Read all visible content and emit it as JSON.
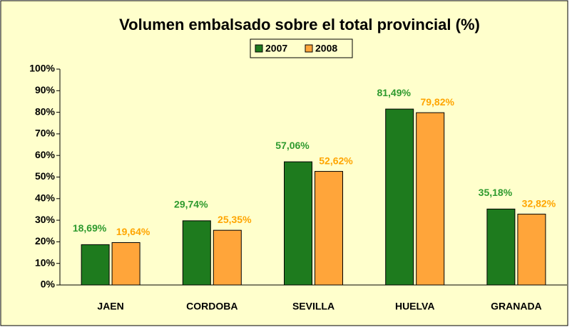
{
  "chart_data": {
    "type": "bar",
    "title": "Volumen embalsado sobre el total provincial (%)",
    "categories": [
      "JAEN",
      "CORDOBA",
      "SEVILLA",
      "HUELVA",
      "GRANADA"
    ],
    "series": [
      {
        "name": "2007",
        "color": "#1e7b1e",
        "label_color": "#2e9a2e",
        "values": [
          18.69,
          29.74,
          57.06,
          81.49,
          35.18
        ],
        "value_labels": [
          "18,69%",
          "29,74%",
          "57,06%",
          "81,49%",
          "35,18%"
        ]
      },
      {
        "name": "2008",
        "color": "#ffa53a",
        "label_color": "#ffa500",
        "values": [
          19.64,
          25.35,
          52.62,
          79.82,
          32.82
        ],
        "value_labels": [
          "19,64%",
          "25,35%",
          "52,62%",
          "79,82%",
          "32,82%"
        ]
      }
    ],
    "ylim": [
      0,
      100
    ],
    "yticks": [
      {
        "value": 0,
        "label": "0%"
      },
      {
        "value": 10,
        "label": "10%"
      },
      {
        "value": 20,
        "label": "20%"
      },
      {
        "value": 30,
        "label": "30%"
      },
      {
        "value": 40,
        "label": "40%"
      },
      {
        "value": 50,
        "label": "50%"
      },
      {
        "value": 60,
        "label": "60%"
      },
      {
        "value": 70,
        "label": "70%"
      },
      {
        "value": 80,
        "label": "80%"
      },
      {
        "value": 90,
        "label": "90%"
      },
      {
        "value": 100,
        "label": "100%"
      }
    ],
    "grid": false,
    "legend": "top",
    "background": "#ffffcc"
  }
}
